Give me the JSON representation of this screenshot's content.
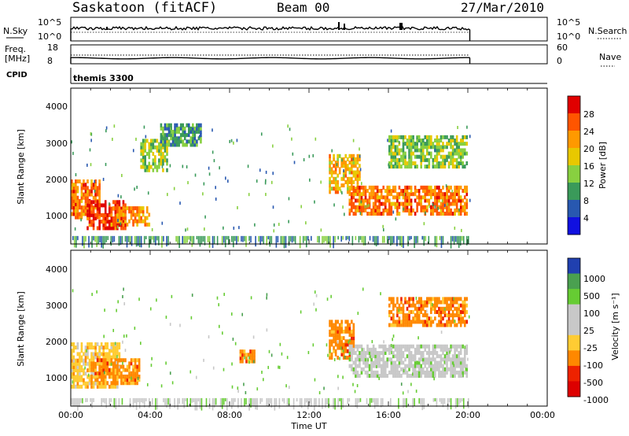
{
  "header": {
    "station": "Saskatoon (fitACF)",
    "beam": "Beam 00",
    "date": "27/Mar/2010"
  },
  "sky_panel": {
    "left_label": "N.Sky",
    "right_label": "N.Search",
    "left_ticks": [
      "10^5",
      "10^0"
    ],
    "right_ticks": [
      "10^5",
      "10^0"
    ]
  },
  "freq_panel": {
    "left_label_line1": "Freq.",
    "left_label_line2": "[MHz]",
    "right_label": "Nave",
    "left_ticks": [
      "18",
      "8"
    ],
    "right_ticks": [
      "60",
      "0"
    ]
  },
  "cpid": {
    "label": "CPID",
    "value": "themis 3300"
  },
  "power_panel": {
    "ylabel": "Slant Range [km]",
    "yticks": [
      "4000",
      "3000",
      "2000",
      "1000"
    ],
    "colorbar_label": "Power [dB]",
    "colorbar_ticks": [
      "28",
      "24",
      "20",
      "16",
      "12",
      "8",
      "4"
    ],
    "colors": [
      "#e00000",
      "#ff5500",
      "#ff9900",
      "#e8c800",
      "#88d040",
      "#3a9a5a",
      "#2858b0",
      "#1010e0"
    ]
  },
  "velocity_panel": {
    "ylabel": "Slant Range [km]",
    "yticks": [
      "4000",
      "3000",
      "2000",
      "1000"
    ],
    "colorbar_label": "Velocity [m s⁻¹]",
    "colorbar_ticks": [
      "1000",
      "500",
      "100",
      "25",
      "-25",
      "-100",
      "-500",
      "-1000"
    ],
    "colors": [
      "#2040b0",
      "#4aa050",
      "#66cc33",
      "#c8c8c8",
      "#c8c8c8",
      "#ffcc33",
      "#ff8800",
      "#ee2200",
      "#dd0000"
    ]
  },
  "xaxis": {
    "label": "Time UT",
    "ticks": [
      "00:00",
      "04:00",
      "08:00",
      "12:00",
      "16:00",
      "20:00",
      "00:00"
    ]
  },
  "chart_data": [
    {
      "type": "heatmap",
      "panel": "power",
      "x": "Time UT (hours)",
      "xlim": [
        0,
        24
      ],
      "ylim": [
        200,
        4500
      ],
      "data_end_hour": 20.1,
      "echo_regions_km": [
        {
          "t": [
            0.0,
            1.5
          ],
          "r": [
            900,
            1900
          ],
          "level_db": 22
        },
        {
          "t": [
            0.8,
            2.8
          ],
          "r": [
            600,
            1400
          ],
          "level_db": 26
        },
        {
          "t": [
            2.0,
            4.0
          ],
          "r": [
            700,
            1200
          ],
          "level_db": 20
        },
        {
          "t": [
            3.5,
            4.8
          ],
          "r": [
            2200,
            3100
          ],
          "level_db": 12
        },
        {
          "t": [
            4.5,
            6.5
          ],
          "r": [
            2900,
            3500
          ],
          "level_db": 8
        },
        {
          "t": [
            13.0,
            14.5
          ],
          "r": [
            1600,
            2600
          ],
          "level_db": 18
        },
        {
          "t": [
            14.0,
            20.0
          ],
          "r": [
            1000,
            1800
          ],
          "level_db": 22
        },
        {
          "t": [
            16.0,
            20.0
          ],
          "r": [
            2300,
            3200
          ],
          "level_db": 12
        }
      ]
    },
    {
      "type": "heatmap",
      "panel": "velocity",
      "x": "Time UT (hours)",
      "xlim": [
        0,
        24
      ],
      "ylim": [
        200,
        4500
      ],
      "data_end_hour": 20.1,
      "echo_regions_km": [
        {
          "t": [
            0.0,
            2.5
          ],
          "r": [
            700,
            1900
          ],
          "velocity": -100
        },
        {
          "t": [
            1.0,
            3.5
          ],
          "r": [
            800,
            1500
          ],
          "velocity": -500
        },
        {
          "t": [
            13.0,
            14.2
          ],
          "r": [
            1500,
            2500
          ],
          "velocity": -500
        },
        {
          "t": [
            14.0,
            20.0
          ],
          "r": [
            1000,
            1900
          ],
          "velocity": 0
        },
        {
          "t": [
            16.0,
            20.0
          ],
          "r": [
            2400,
            3200
          ],
          "velocity": -500
        },
        {
          "t": [
            8.5,
            9.2
          ],
          "r": [
            1400,
            1700
          ],
          "velocity": -500
        }
      ]
    }
  ]
}
